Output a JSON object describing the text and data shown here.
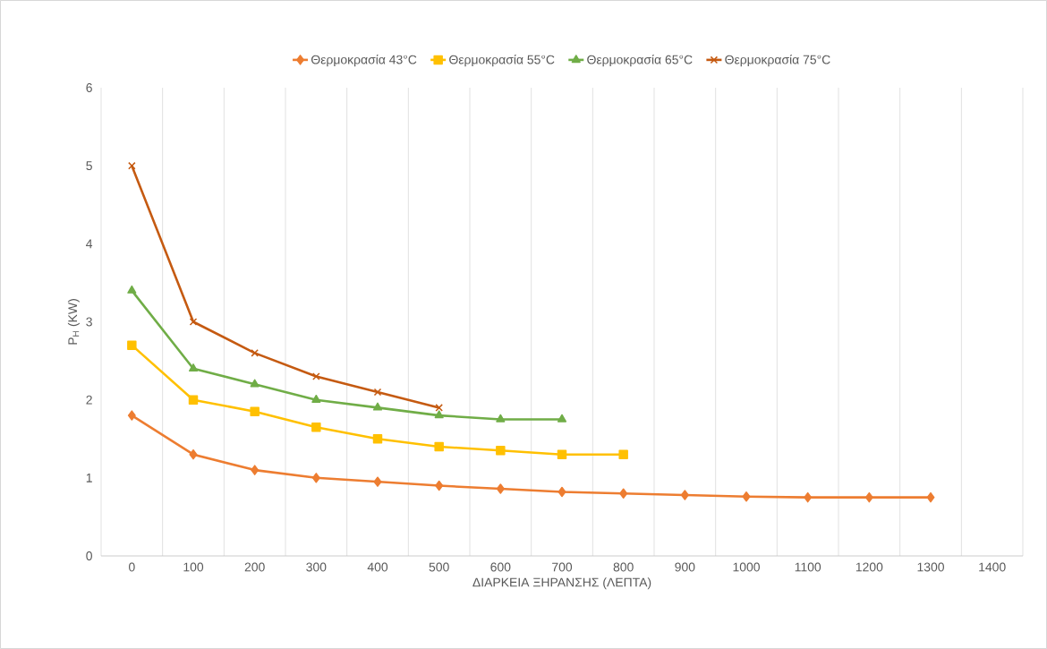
{
  "chart_data": {
    "type": "line",
    "xlabel": "ΔΙΑΡΚΕΙΑ ΞΗΡΑΝΣΗΣ (ΛΕΠΤΑ)",
    "ylabel": "P$_{H}$ (KW)",
    "categories": [
      "0",
      "100",
      "200",
      "300",
      "400",
      "500",
      "600",
      "700",
      "800",
      "900",
      "1000",
      "1100",
      "1200",
      "1300",
      "1400"
    ],
    "ylim": [
      0,
      6
    ],
    "yticks": [
      0,
      1,
      2,
      3,
      4,
      5,
      6
    ],
    "grid": "x",
    "legend": "top",
    "series": [
      {
        "name": "Θερμοκρασία 43°C",
        "color": "#ed7d31",
        "marker": "diamond",
        "values": [
          1.8,
          1.3,
          1.1,
          1.0,
          0.95,
          0.9,
          0.86,
          0.82,
          0.8,
          0.78,
          0.76,
          0.75,
          0.75,
          0.75,
          null
        ]
      },
      {
        "name": "Θερμοκρασία 55°C",
        "color": "#ffc000",
        "marker": "square",
        "values": [
          2.7,
          2.0,
          1.85,
          1.65,
          1.5,
          1.4,
          1.35,
          1.3,
          1.3,
          null,
          null,
          null,
          null,
          null,
          null
        ]
      },
      {
        "name": "Θερμοκρασία 65°C",
        "color": "#70ad47",
        "marker": "triangle",
        "values": [
          3.4,
          2.4,
          2.2,
          2.0,
          1.9,
          1.8,
          1.75,
          1.75,
          null,
          null,
          null,
          null,
          null,
          null,
          null
        ]
      },
      {
        "name": "Θερμοκρασία 75°C",
        "color": "#c55a11",
        "marker": "cross",
        "values": [
          5.0,
          3.0,
          2.6,
          2.3,
          2.1,
          1.9,
          null,
          null,
          null,
          null,
          null,
          null,
          null,
          null,
          null
        ]
      }
    ]
  }
}
